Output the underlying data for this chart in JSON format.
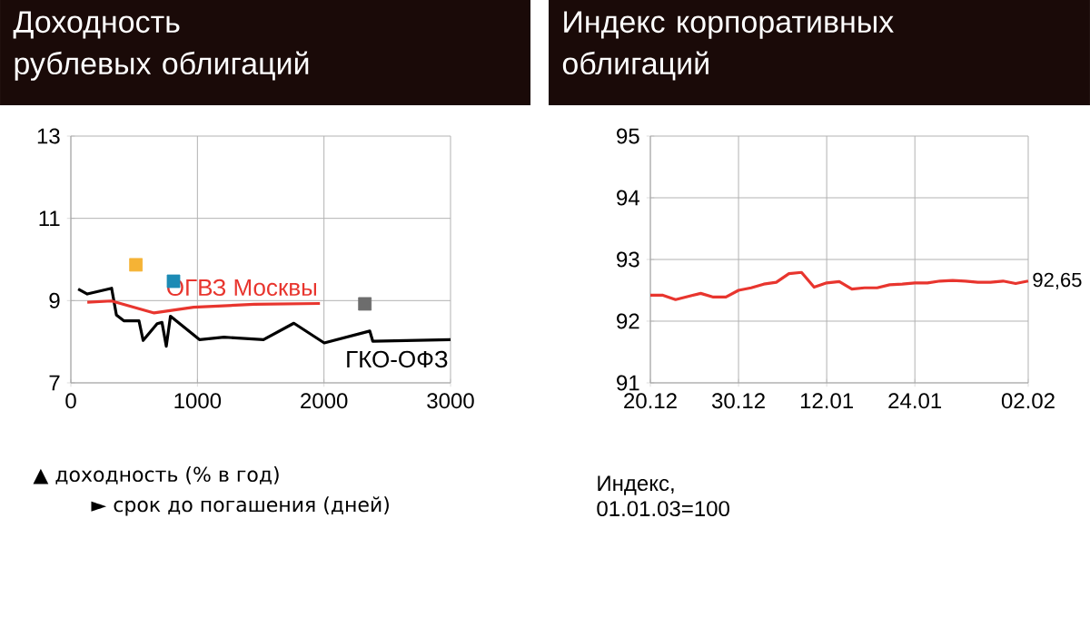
{
  "chart_data": [
    {
      "type": "line",
      "title": "Доходность рублевых облигаций",
      "xlabel": "► срок до погашения (дней)",
      "ylabel": "▲ доходность (% в год)",
      "xlim": [
        0,
        3000
      ],
      "ylim": [
        7,
        13
      ],
      "xticks": [
        0,
        1000,
        2000,
        3000
      ],
      "yticks": [
        7,
        9,
        11,
        13
      ],
      "grid": true,
      "series": [
        {
          "name": "ГКО-ОФЗ",
          "color": "#000000",
          "x": [
            58,
            130,
            322,
            360,
            418,
            538,
            571,
            682,
            720,
            754,
            787,
            1018,
            1210,
            1522,
            1762,
            2002,
            2362,
            2386,
            3000
          ],
          "values": [
            9.28,
            9.16,
            9.3,
            8.65,
            8.51,
            8.51,
            8.03,
            8.44,
            8.47,
            7.89,
            8.62,
            8.05,
            8.11,
            8.05,
            8.45,
            7.97,
            8.26,
            8.01,
            8.05
          ]
        },
        {
          "name": "ОГВЗ Москвы",
          "color": "#e8352e",
          "x": [
            130,
            322,
            658,
            970,
            1450,
            1968
          ],
          "values": [
            8.96,
            8.99,
            8.7,
            8.84,
            8.91,
            8.93
          ]
        },
        {
          "type": "scatter",
          "marker": "square",
          "color": "#6d6d6d",
          "x": [
            2323
          ],
          "values": [
            8.92
          ]
        },
        {
          "type": "scatter",
          "marker": "square",
          "color": "#f5b335",
          "x": [
            514
          ],
          "values": [
            9.87
          ]
        },
        {
          "type": "scatter",
          "marker": "square",
          "color": "#1c8bb5",
          "x": [
            811
          ],
          "values": [
            9.47
          ]
        }
      ]
    },
    {
      "type": "line",
      "title": "Индекс корпоративных облигаций",
      "ylim": [
        91,
        95
      ],
      "yticks": [
        91,
        92,
        93,
        94,
        95
      ],
      "grid": true,
      "color": "#e8352e",
      "categories": [
        "20.12",
        null,
        null,
        null,
        null,
        null,
        null,
        "30.12",
        null,
        null,
        null,
        null,
        null,
        null,
        "12.01",
        null,
        null,
        null,
        null,
        null,
        null,
        "24.01",
        null,
        null,
        null,
        null,
        null,
        null,
        null,
        null,
        "02.02"
      ],
      "values": [
        92.42,
        92.42,
        92.35,
        92.4,
        92.45,
        92.39,
        92.39,
        92.5,
        92.54,
        92.6,
        92.63,
        92.77,
        92.79,
        92.55,
        92.62,
        92.64,
        92.52,
        92.54,
        92.54,
        92.59,
        92.6,
        92.62,
        92.62,
        92.65,
        92.66,
        92.65,
        92.63,
        92.63,
        92.65,
        92.61,
        92.65
      ],
      "value_labels": [
        null,
        null,
        null,
        null,
        null,
        null,
        null,
        null,
        null,
        null,
        null,
        null,
        null,
        null,
        null,
        null,
        null,
        null,
        null,
        null,
        null,
        null,
        null,
        null,
        null,
        null,
        null,
        null,
        null,
        null,
        "92,65"
      ],
      "annotations": [
        "Индекс, 01.01.03=100"
      ]
    }
  ]
}
